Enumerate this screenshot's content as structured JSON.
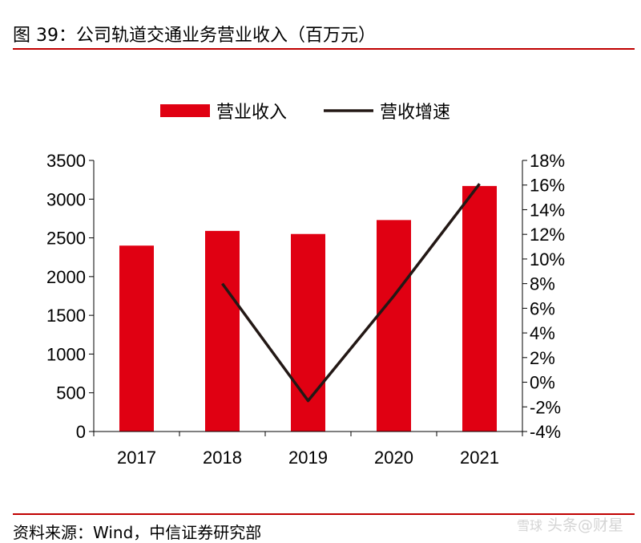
{
  "figure": {
    "title": "图 39：公司轨道交通业务营业收入（百万元）",
    "source": "资料来源：Wind，中信证券研究部"
  },
  "watermark": {
    "text": "头条@财星",
    "logo_text": "雪球"
  },
  "colors": {
    "bar": "#e00012",
    "line": "#231815",
    "rule": "#c00000",
    "axis": "#000000"
  },
  "chart_data": {
    "type": "bar",
    "categories": [
      "2017",
      "2018",
      "2019",
      "2020",
      "2021"
    ],
    "series": [
      {
        "name": "营业收入",
        "type": "bar",
        "axis": "left",
        "values": [
          2400,
          2590,
          2550,
          2730,
          3170
        ]
      },
      {
        "name": "营收增速",
        "type": "line",
        "axis": "right",
        "values": [
          null,
          0.08,
          -0.015,
          0.07,
          0.161
        ]
      }
    ],
    "y_left": {
      "min": 0,
      "max": 3500,
      "ticks": [
        0,
        500,
        1000,
        1500,
        2000,
        2500,
        3000,
        3500
      ]
    },
    "y_right": {
      "min": -0.04,
      "max": 0.18,
      "ticks": [
        -0.04,
        -0.02,
        0,
        0.02,
        0.04,
        0.06,
        0.08,
        0.1,
        0.12,
        0.14,
        0.16,
        0.18
      ],
      "tick_labels": [
        "-4%",
        "-2%",
        "0%",
        "2%",
        "4%",
        "6%",
        "8%",
        "10%",
        "12%",
        "14%",
        "16%",
        "18%"
      ]
    },
    "grid": false,
    "legend_position": "top-center"
  }
}
